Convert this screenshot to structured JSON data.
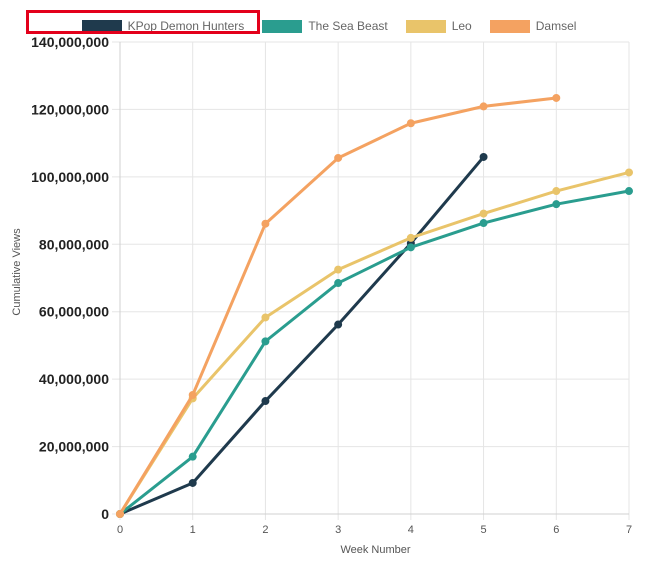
{
  "chart_data": {
    "type": "line",
    "xlabel": "Week Number",
    "ylabel": "Cumulative Views",
    "x": [
      0,
      1,
      2,
      3,
      4,
      5,
      6,
      7
    ],
    "xlim": [
      0,
      7
    ],
    "ylim": [
      0,
      140000000
    ],
    "y_ticks": [
      0,
      20000000,
      40000000,
      60000000,
      80000000,
      100000000,
      120000000,
      140000000
    ],
    "y_tick_labels": [
      "0",
      "20,000,000",
      "40,000,000",
      "60,000,000",
      "80,000,000",
      "100,000,000",
      "120,000,000",
      "140,000,000"
    ],
    "x_tick_labels": [
      "0",
      "1",
      "2",
      "3",
      "4",
      "5",
      "6",
      "7"
    ],
    "grid": true,
    "legend_position": "top",
    "highlighted_legend_entry": "KPop Demon Hunters",
    "series": [
      {
        "name": "KPop Demon Hunters",
        "color": "#1f3a4d",
        "x": [
          0,
          1,
          2,
          3,
          4,
          5
        ],
        "values": [
          0,
          9200000,
          33500000,
          56200000,
          80300000,
          105900000
        ]
      },
      {
        "name": "The Sea Beast",
        "color": "#2a9d8f",
        "x": [
          0,
          1,
          2,
          3,
          4,
          5,
          6,
          7
        ],
        "values": [
          0,
          17000000,
          51200000,
          68500000,
          79100000,
          86300000,
          91900000,
          95800000
        ]
      },
      {
        "name": "Leo",
        "color": "#e9c46a",
        "x": [
          0,
          1,
          2,
          3,
          4,
          5,
          6,
          7
        ],
        "values": [
          0,
          34300000,
          58300000,
          72500000,
          81900000,
          89100000,
          95800000,
          101300000
        ]
      },
      {
        "name": "Damsel",
        "color": "#f4a261",
        "x": [
          0,
          1,
          2,
          3,
          4,
          5,
          6
        ],
        "values": [
          0,
          35300000,
          86100000,
          105600000,
          115900000,
          120900000,
          123400000
        ]
      }
    ]
  }
}
